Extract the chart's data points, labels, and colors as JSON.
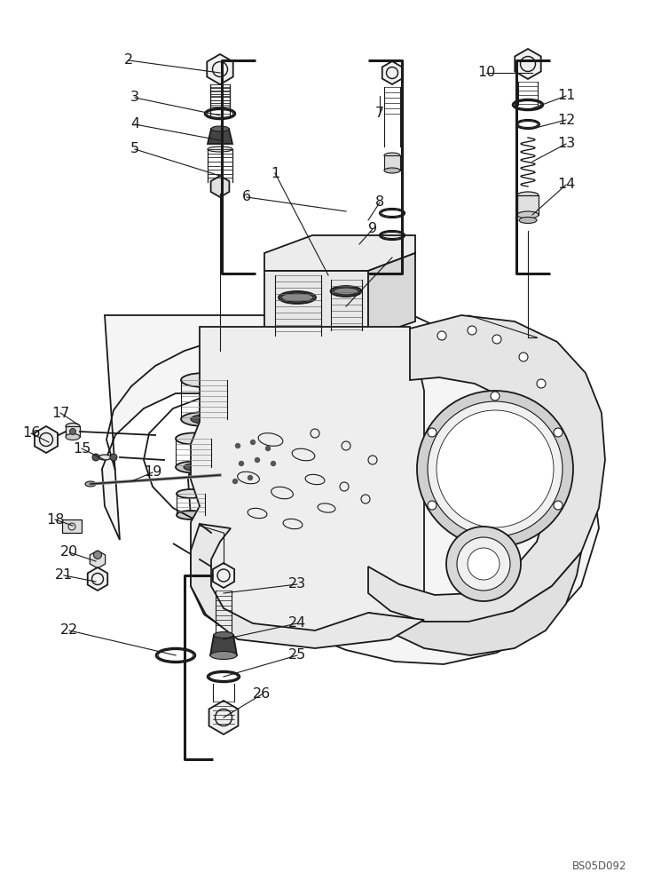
{
  "bg_color": "#ffffff",
  "line_color": "#1a1a1a",
  "watermark": "BS05D092",
  "fig_width": 7.36,
  "fig_height": 10.0,
  "labels": [
    [
      "1",
      310,
      195,
      370,
      310
    ],
    [
      "2",
      145,
      68,
      248,
      82
    ],
    [
      "3",
      152,
      110,
      248,
      130
    ],
    [
      "4",
      152,
      140,
      248,
      158
    ],
    [
      "5",
      152,
      168,
      248,
      198
    ],
    [
      "6",
      278,
      222,
      390,
      238
    ],
    [
      "7",
      428,
      128,
      428,
      108
    ],
    [
      "8",
      428,
      228,
      415,
      248
    ],
    [
      "9",
      420,
      258,
      405,
      275
    ],
    [
      "10",
      548,
      82,
      600,
      82
    ],
    [
      "11",
      638,
      108,
      600,
      122
    ],
    [
      "12",
      638,
      135,
      600,
      145
    ],
    [
      "13",
      638,
      162,
      600,
      182
    ],
    [
      "14",
      638,
      208,
      600,
      242
    ],
    [
      "15",
      92,
      505,
      118,
      518
    ],
    [
      "16",
      35,
      488,
      55,
      498
    ],
    [
      "17",
      68,
      465,
      88,
      478
    ],
    [
      "18",
      62,
      585,
      82,
      592
    ],
    [
      "19",
      172,
      532,
      148,
      542
    ],
    [
      "20",
      78,
      622,
      108,
      632
    ],
    [
      "21",
      72,
      648,
      108,
      655
    ],
    [
      "22",
      78,
      710,
      198,
      738
    ],
    [
      "23",
      335,
      658,
      252,
      668
    ],
    [
      "24",
      335,
      702,
      252,
      720
    ],
    [
      "25",
      335,
      738,
      252,
      762
    ],
    [
      "26",
      295,
      782,
      252,
      808
    ]
  ]
}
